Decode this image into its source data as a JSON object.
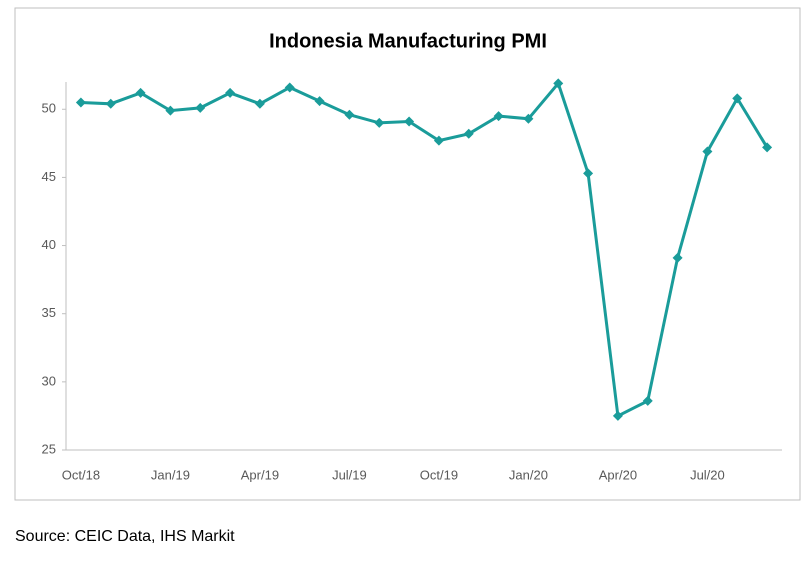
{
  "chart_data": {
    "type": "line",
    "title": "Indonesia Manufacturing PMI",
    "categories": [
      "Oct/18",
      null,
      null,
      "Jan/19",
      null,
      null,
      "Apr/19",
      null,
      null,
      "Jul/19",
      null,
      null,
      "Oct/19",
      null,
      null,
      "Jan/20",
      null,
      null,
      "Apr/20",
      null,
      null,
      "Jul/20",
      null,
      null
    ],
    "values": [
      50.5,
      50.4,
      51.2,
      49.9,
      50.1,
      51.2,
      50.4,
      51.6,
      50.6,
      49.6,
      49.0,
      49.1,
      47.7,
      48.2,
      49.5,
      49.3,
      51.9,
      45.3,
      27.5,
      28.6,
      39.1,
      46.9,
      50.8,
      47.2
    ],
    "color": "#1a9c9a",
    "ylim": [
      25,
      52
    ],
    "yticks": [
      25,
      30,
      35,
      40,
      45,
      50
    ],
    "grid": false,
    "source": "Source: CEIC Data, IHS Markit"
  }
}
